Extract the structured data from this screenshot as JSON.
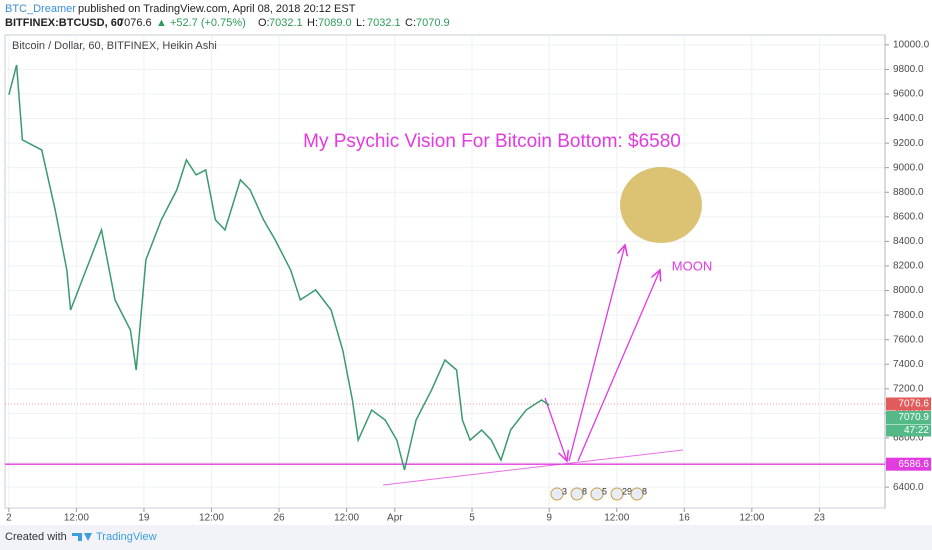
{
  "header": {
    "author": "BTC_Dreamer",
    "published": "published on TradingView.com, April 08, 2018 20:12 EST",
    "symbol": "BITFINEX:BTCUSD, 60",
    "last": "7076.6",
    "change": "▲ +52.7 (+0.75%)",
    "ohlc": [
      "O:",
      "7032.1",
      "H:",
      "7089.0",
      "L:",
      "7032.1",
      "C:",
      "7070.9"
    ]
  },
  "footer": {
    "created": "Created with",
    "brand": "TradingView"
  },
  "annotations": {
    "headline": "My Psychic Vision For Bitcoin Bottom: $6580",
    "moon": "MOON"
  },
  "events": [
    "3",
    "8",
    "5",
    "29",
    "8"
  ],
  "chart_data": {
    "type": "line",
    "title": "Bitcoin / Dollar, 60, BITFINEX, Heikin Ashi",
    "color": "#3a9a6e",
    "x": [
      0,
      0.4,
      0.7,
      1.7,
      2.4,
      3.0,
      3.2,
      4.0,
      4.8,
      5.5,
      6.3,
      6.6,
      7.1,
      7.9,
      8.7,
      9.2,
      9.7,
      10.2,
      10.7,
      11.2,
      12.0,
      12.5,
      13.2,
      13.8,
      14.6,
      15.1,
      15.9,
      16.7,
      17.3,
      17.8,
      18.1,
      18.8,
      19.5,
      20.1,
      20.5,
      21.1,
      21.9,
      22.6,
      23.2,
      23.5,
      23.9,
      24.5,
      25.0,
      25.5,
      26.0,
      26.8,
      27.6,
      28.0
    ],
    "values": [
      9593,
      9837,
      9226,
      9145,
      8656,
      8168,
      7842,
      8168,
      8494,
      7924,
      7679,
      7353,
      8250,
      8575,
      8819,
      9063,
      8941,
      8982,
      8575,
      8494,
      8901,
      8819,
      8575,
      8412,
      8168,
      7924,
      8005,
      7842,
      7516,
      7109,
      6783,
      7028,
      6946,
      6783,
      6539,
      6946,
      7190,
      7435,
      7353,
      6946,
      6783,
      6865,
      6783,
      6620,
      6865,
      7028,
      7109,
      7068
    ],
    "xlim": [
      -0.2,
      45.4
    ],
    "xticks": [
      {
        "value": 0,
        "label": "2"
      },
      {
        "value": 3.5,
        "label": "12:00"
      },
      {
        "value": 7,
        "label": "19"
      },
      {
        "value": 10.5,
        "label": "12:00"
      },
      {
        "value": 14,
        "label": "26"
      },
      {
        "value": 17.5,
        "label": "12:00"
      },
      {
        "value": 20,
        "label": "Apr"
      },
      {
        "value": 24,
        "label": "5"
      },
      {
        "value": 28,
        "label": "9"
      },
      {
        "value": 31.5,
        "label": "12:00"
      },
      {
        "value": 35,
        "label": "16"
      },
      {
        "value": 38.5,
        "label": "12:00"
      },
      {
        "value": 42,
        "label": "23"
      }
    ],
    "ylim": [
      6230,
      10080
    ],
    "yticks": [
      {
        "value": 6400,
        "label": "6400.0"
      },
      {
        "value": 6600,
        "label": "6600.0"
      },
      {
        "value": 6800,
        "label": "6800.0"
      },
      {
        "value": 7000,
        "label": "7000.0"
      },
      {
        "value": 7200,
        "label": "7200.0"
      },
      {
        "value": 7400,
        "label": "7400.0"
      },
      {
        "value": 7600,
        "label": "7600.0"
      },
      {
        "value": 7800,
        "label": "7800.0"
      },
      {
        "value": 8000,
        "label": "8000.0"
      },
      {
        "value": 8200,
        "label": "8200.0"
      },
      {
        "value": 8400,
        "label": "8400.0"
      },
      {
        "value": 8600,
        "label": "8600.0"
      },
      {
        "value": 8800,
        "label": "8800.0"
      },
      {
        "value": 9000,
        "label": "9000.0"
      },
      {
        "value": 9200,
        "label": "9200.0"
      },
      {
        "value": 9400,
        "label": "9400.0"
      },
      {
        "value": 9600,
        "label": "9600.0"
      },
      {
        "value": 9800,
        "label": "9800.0"
      },
      {
        "value": 10000,
        "label": "10000.0"
      }
    ],
    "grid": true,
    "price_labels": [
      {
        "value": 7076.6,
        "color": "#e25b5b"
      },
      {
        "value": 7070.9,
        "color": "#53b987"
      },
      {
        "value": 6586.6,
        "color": "#e23be0"
      }
    ],
    "countdown": "47:22",
    "hline": {
      "value": 6586.6,
      "color": "#e23be0"
    }
  }
}
